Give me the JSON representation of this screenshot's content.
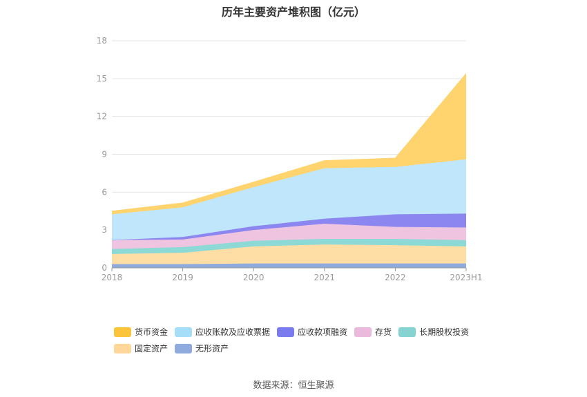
{
  "chart_data": {
    "type": "area",
    "stacked": true,
    "title": "历年主要资产堆积图（亿元）",
    "categories": [
      "2018",
      "2019",
      "2020",
      "2021",
      "2022",
      "2023H1"
    ],
    "ylim": [
      0,
      18
    ],
    "yticks": [
      0,
      3,
      6,
      9,
      12,
      15,
      18
    ],
    "grid": true,
    "legend_position": "bottom",
    "series": [
      {
        "name": "无形资产",
        "color": "#8faadc",
        "values": [
          0.3,
          0.3,
          0.35,
          0.35,
          0.35,
          0.35
        ]
      },
      {
        "name": "固定资产",
        "color": "#ffdea6",
        "values": [
          0.8,
          0.9,
          1.35,
          1.5,
          1.45,
          1.35
        ]
      },
      {
        "name": "长期股权投资",
        "color": "#8dd9d6",
        "values": [
          0.4,
          0.45,
          0.45,
          0.45,
          0.5,
          0.5
        ]
      },
      {
        "name": "存货",
        "color": "#efc4e0",
        "values": [
          0.7,
          0.6,
          0.85,
          1.2,
          0.95,
          1.0
        ]
      },
      {
        "name": "应收款项融资",
        "color": "#8c86f0",
        "values": [
          0.0,
          0.2,
          0.3,
          0.4,
          1.0,
          1.1
        ]
      },
      {
        "name": "应收账款及应收票据",
        "color": "#bfe6fa",
        "values": [
          2.05,
          2.35,
          3.1,
          4.0,
          3.75,
          4.3
        ]
      },
      {
        "name": "货币资金",
        "color": "#ffd36e",
        "values": [
          0.25,
          0.35,
          0.4,
          0.6,
          0.7,
          6.8
        ]
      }
    ],
    "legend_order": [
      "货币资金",
      "应收账款及应收票据",
      "应收款项融资",
      "存货",
      "长期股权投资",
      "固定资产",
      "无形资产"
    ],
    "legend_colors": {
      "货币资金": "#fcc43a",
      "应收账款及应收票据": "#a6ddf7",
      "应收款项融资": "#7b7bf0",
      "存货": "#ebb9dc",
      "长期股权投资": "#86d4d1",
      "固定资产": "#ffd79b",
      "无形资产": "#8faadc"
    }
  },
  "source": "数据来源：恒生聚源"
}
